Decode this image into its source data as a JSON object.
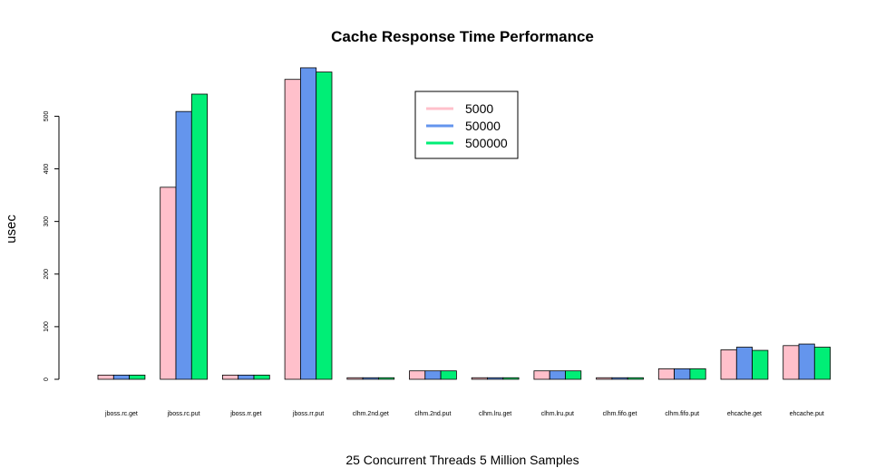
{
  "chart_data": {
    "type": "bar",
    "title": "Cache Response Time Performance",
    "xlabel": "25 Concurrent Threads 5 Million Samples",
    "ylabel": "usec",
    "ylim": [
      0,
      600
    ],
    "yticks": [
      0,
      100,
      200,
      300,
      400,
      500
    ],
    "grid": false,
    "legend_position": "top-center",
    "categories": [
      "jboss.rc.get",
      "jboss.rc.put",
      "jboss.rr.get",
      "jboss.rr.put",
      "clhm.2nd.get",
      "clhm.2nd.put",
      "clhm.lru.get",
      "clhm.lru.put",
      "clhm.fifo.get",
      "clhm.fifo.put",
      "ehcache.get",
      "ehcache.put"
    ],
    "series": [
      {
        "name": "5000",
        "color": "#FFC0CB",
        "values": [
          8,
          365,
          8,
          570,
          3,
          16,
          3,
          16,
          3,
          20,
          56,
          64
        ]
      },
      {
        "name": "50000",
        "color": "#6495ED",
        "values": [
          8,
          509,
          8,
          592,
          3,
          16,
          3,
          16,
          3,
          20,
          61,
          67
        ]
      },
      {
        "name": "500000",
        "color": "#00EE76",
        "values": [
          8,
          542,
          8,
          584,
          3,
          16,
          3,
          16,
          3,
          20,
          55,
          61
        ]
      }
    ]
  }
}
